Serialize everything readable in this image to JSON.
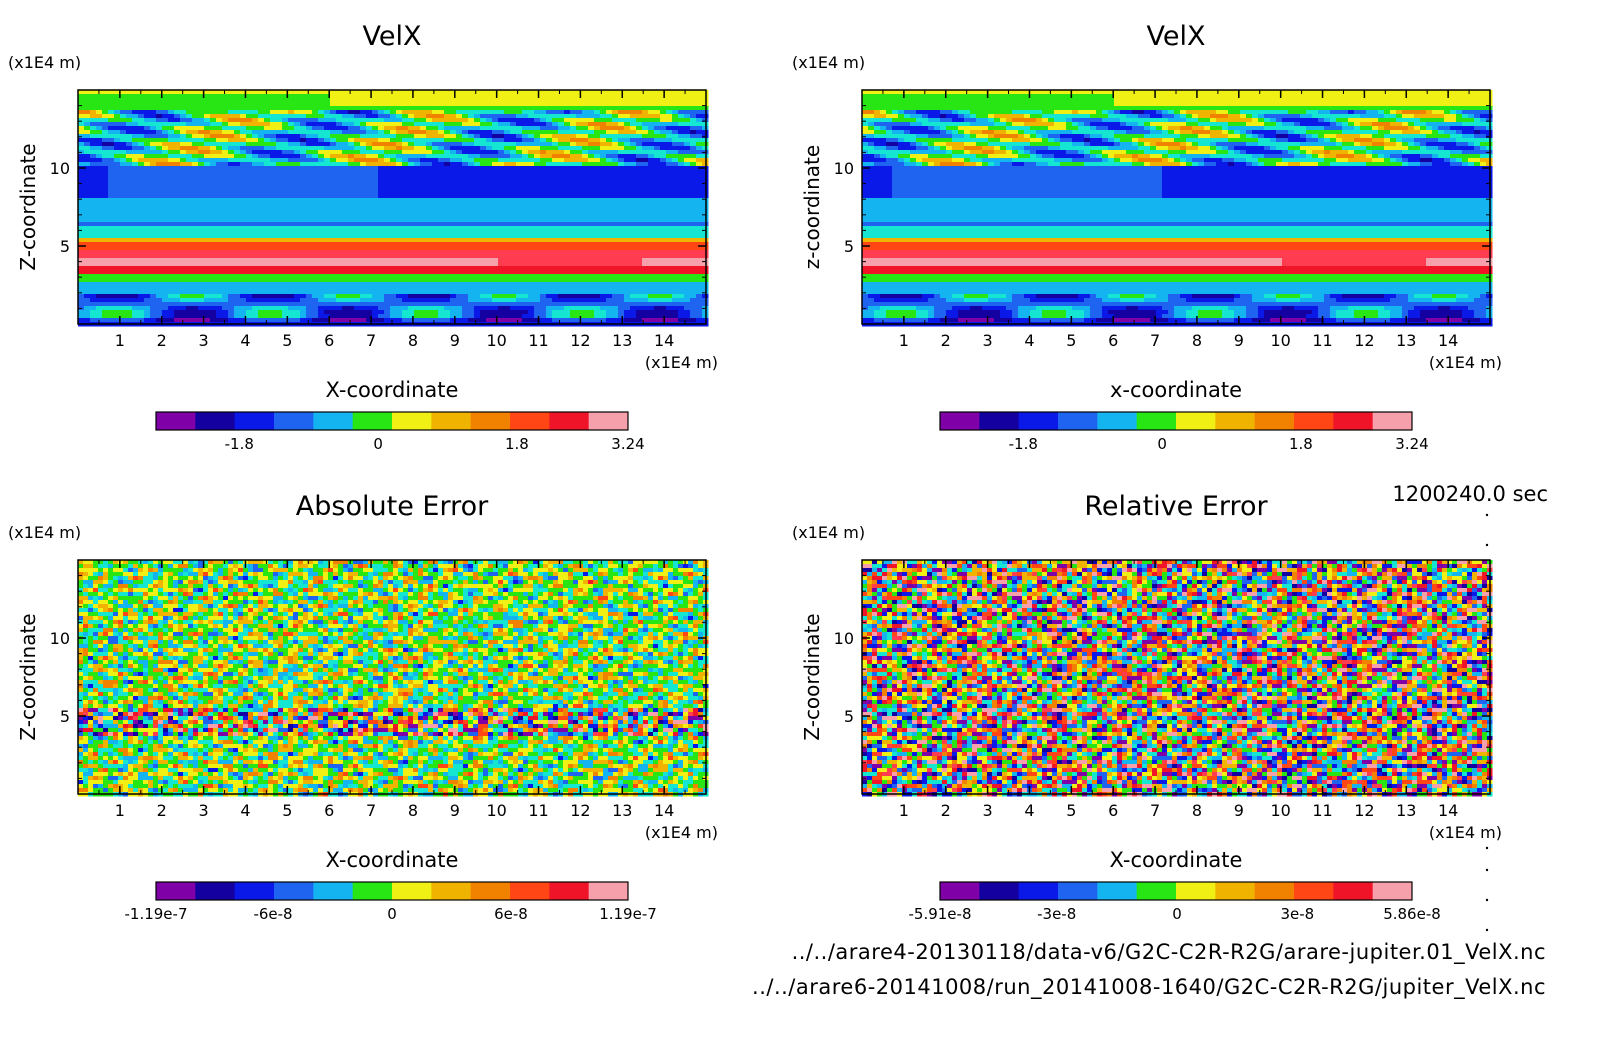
{
  "time_label": "1200240.0 sec",
  "files": [
    "../../arare4-20130118/data-v6/G2C-C2R-R2G/arare-jupiter.01_VelX.nc",
    "../../arare6-20141008/run_20141008-1640/G2C-C2R-R2G/jupiter_VelX.nc"
  ],
  "palette": [
    "#8000a8",
    "#1400a0",
    "#0a18e8",
    "#1e64f0",
    "#14b4f0",
    "#14e6d2",
    "#28e614",
    "#f0f014",
    "#f0b400",
    "#f08200",
    "#ff4614",
    "#f01428",
    "#ff3c50",
    "#f5a0aa"
  ],
  "chart_data": [
    {
      "type": "heatmap",
      "title": "VelX",
      "xlabel": "X-coordinate",
      "ylabel": "Z-coordinate",
      "x_unit": "(x1E4 m)",
      "y_unit": "(x1E4 m)",
      "xlim": [
        0,
        15
      ],
      "ylim": [
        0,
        15
      ],
      "x_ticks": [
        "1",
        "2",
        "3",
        "4",
        "5",
        "6",
        "7",
        "8",
        "9",
        "10",
        "11",
        "12",
        "13",
        "14"
      ],
      "y_ticks": [
        "5",
        "10"
      ],
      "colorbar": {
        "ticks": [
          "-1.8",
          "0",
          "1.8",
          "3.24"
        ],
        "range": [
          -2.88,
          3.24
        ]
      },
      "field": "velx"
    },
    {
      "type": "heatmap",
      "title": "VelX",
      "xlabel": "x-coordinate",
      "ylabel": "z-coordinate",
      "x_unit": "(x1E4 m)",
      "y_unit": "(x1E4 m)",
      "xlim": [
        0,
        15
      ],
      "ylim": [
        0,
        15
      ],
      "x_ticks": [
        "1",
        "2",
        "3",
        "4",
        "5",
        "6",
        "7",
        "8",
        "9",
        "10",
        "11",
        "12",
        "13",
        "14"
      ],
      "y_ticks": [
        "5",
        "10"
      ],
      "colorbar": {
        "ticks": [
          "-1.8",
          "0",
          "1.8",
          "3.24"
        ],
        "range": [
          -2.88,
          3.24
        ]
      },
      "field": "velx"
    },
    {
      "type": "heatmap",
      "title": "Absolute Error",
      "xlabel": "X-coordinate",
      "ylabel": "Z-coordinate",
      "x_unit": "(x1E4 m)",
      "y_unit": "(x1E4 m)",
      "xlim": [
        0,
        15
      ],
      "ylim": [
        0,
        15
      ],
      "x_ticks": [
        "1",
        "2",
        "3",
        "4",
        "5",
        "6",
        "7",
        "8",
        "9",
        "10",
        "11",
        "12",
        "13",
        "14"
      ],
      "y_ticks": [
        "5",
        "10"
      ],
      "colorbar": {
        "ticks": [
          "-1.19e-7",
          "-6e-8",
          "0",
          "6e-8",
          "1.19e-7"
        ],
        "range": [
          -1.19e-07,
          1.19e-07
        ]
      },
      "field": "abs_error"
    },
    {
      "type": "heatmap",
      "title": "Relative Error",
      "xlabel": "X-coordinate",
      "ylabel": "Z-coordinate",
      "x_unit": "(x1E4 m)",
      "y_unit": "(x1E4 m)",
      "xlim": [
        0,
        15
      ],
      "ylim": [
        0,
        15
      ],
      "x_ticks": [
        "1",
        "2",
        "3",
        "4",
        "5",
        "6",
        "7",
        "8",
        "9",
        "10",
        "11",
        "12",
        "13",
        "14"
      ],
      "y_ticks": [
        "5",
        "10"
      ],
      "colorbar": {
        "ticks": [
          "-5.91e-8",
          "-3e-8",
          "0",
          "3e-8",
          "5.86e-8"
        ],
        "range": [
          -5.91e-08,
          5.86e-08
        ]
      },
      "field": "rel_error"
    }
  ]
}
